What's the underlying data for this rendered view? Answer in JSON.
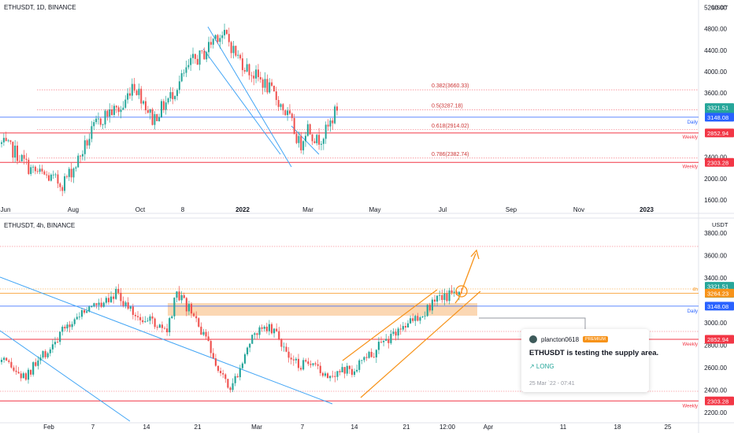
{
  "top_panel": {
    "title": "ETHUSDT, 1D, BINANCE",
    "unit": "USDT",
    "y_ticks": [
      {
        "v": 5200,
        "label": "5200.00"
      },
      {
        "v": 4800,
        "label": "4800.00"
      },
      {
        "v": 4400,
        "label": "4400.00"
      },
      {
        "v": 4000,
        "label": "4000.00"
      },
      {
        "v": 3600,
        "label": "3600.00"
      },
      {
        "v": 2400,
        "label": "2400.00"
      },
      {
        "v": 2000,
        "label": "2000.00"
      },
      {
        "v": 1600,
        "label": "1600.00"
      }
    ],
    "x_ticks": [
      {
        "label": "Jun",
        "bold": false
      },
      {
        "label": "Aug",
        "bold": false
      },
      {
        "label": "Oct",
        "bold": false
      },
      {
        "label": "8",
        "bold": false
      },
      {
        "label": "2022",
        "bold": true
      },
      {
        "label": "Mar",
        "bold": false
      },
      {
        "label": "May",
        "bold": false
      },
      {
        "label": "Jul",
        "bold": false
      },
      {
        "label": "Sep",
        "bold": false
      },
      {
        "label": "Nov",
        "bold": false
      },
      {
        "label": "2023",
        "bold": true
      }
    ],
    "fib_levels": [
      {
        "v": 3660.33,
        "label": "0.382(3660.33)"
      },
      {
        "v": 3287.18,
        "label": "0.5(3287.18)"
      },
      {
        "v": 2914.02,
        "label": "0.618(2914.02)"
      },
      {
        "v": 2382.74,
        "label": "0.786(2382.74)"
      }
    ],
    "badges": [
      {
        "v": 3321.51,
        "text": "3321.51",
        "text2": "16:57:20",
        "color": "#26a69a"
      },
      {
        "v": 3148.08,
        "text": "3148.08",
        "color": "#2962ff"
      },
      {
        "v": 2852.94,
        "text": "2852.94",
        "color": "#f23645"
      },
      {
        "v": 2303.28,
        "text": "2303.28",
        "color": "#f23645"
      }
    ],
    "level_labels": [
      {
        "v": 3148.08,
        "text": "Daily",
        "color": "#2962ff"
      },
      {
        "v": 2852.94,
        "text": "Weekly",
        "color": "#f23645"
      },
      {
        "v": 2303.28,
        "text": "Weekly",
        "color": "#f23645"
      }
    ]
  },
  "bottom_panel": {
    "title": "ETHUSDT, 4h, BINANCE",
    "unit": "USDT",
    "y_ticks": [
      {
        "v": 3800,
        "label": "3800.00"
      },
      {
        "v": 3600,
        "label": "3600.00"
      },
      {
        "v": 3400,
        "label": "3400.00"
      },
      {
        "v": 3000,
        "label": "3000.00"
      },
      {
        "v": 2800,
        "label": "2800.00"
      },
      {
        "v": 2600,
        "label": "2600.00"
      },
      {
        "v": 2400,
        "label": "2400.00"
      },
      {
        "v": 2200,
        "label": "2200.00"
      }
    ],
    "x_ticks": [
      {
        "label": "Feb",
        "bold": false
      },
      {
        "label": "7",
        "bold": false
      },
      {
        "label": "14",
        "bold": false
      },
      {
        "label": "21",
        "bold": false
      },
      {
        "label": "Mar",
        "bold": false
      },
      {
        "label": "7",
        "bold": false
      },
      {
        "label": "14",
        "bold": false
      },
      {
        "label": "21",
        "bold": false
      },
      {
        "label": "12:00",
        "bold": false
      },
      {
        "label": "Apr",
        "bold": false
      },
      {
        "label": "11",
        "bold": false
      },
      {
        "label": "18",
        "bold": false
      },
      {
        "label": "25",
        "bold": false
      }
    ],
    "badges": [
      {
        "v": 3321.51,
        "text": "3321.51",
        "text2": "57:20",
        "color": "#26a69a"
      },
      {
        "v": 3264.23,
        "text": "3264.23",
        "color": "#f7931a"
      },
      {
        "v": 3148.08,
        "text": "3148.08",
        "color": "#2962ff"
      },
      {
        "v": 2852.94,
        "text": "2852.94",
        "color": "#f23645"
      },
      {
        "v": 2303.28,
        "text": "2303.28",
        "color": "#f23645"
      }
    ],
    "level_labels": [
      {
        "v": 3264.23,
        "text": "4h",
        "color": "#f7931a"
      },
      {
        "v": 3148.08,
        "text": "Daily",
        "color": "#2962ff"
      },
      {
        "v": 2852.94,
        "text": "Weekly",
        "color": "#f23645"
      },
      {
        "v": 2303.28,
        "text": "Weekly",
        "color": "#f23645"
      }
    ]
  },
  "card": {
    "user": "plancton0618",
    "badge": "PREMIUM",
    "message": "ETHUSDT is testing the supply area.",
    "signal": "↗ LONG",
    "time": "25 Mar `22 - 07:41"
  },
  "colors": {
    "up": "#26a69a",
    "down": "#ef5350",
    "fib": "#f23645",
    "daily": "#2962ff",
    "weekly": "#f23645",
    "channel": "#f7931a",
    "zone": "#f9c99a"
  },
  "chart_data": [
    {
      "type": "line",
      "title": "ETHUSDT, 1D, BINANCE",
      "ylabel": "USDT",
      "ylim": [
        1300,
        5200
      ],
      "x": [
        "Jun",
        "Aug",
        "Oct",
        "8",
        "2022",
        "Mar"
      ],
      "series": [
        {
          "values": [
            2600,
            3000,
            3400,
            4800,
            3000,
            3321.51
          ]
        }
      ],
      "annotations": [
        "0.382(3660.33)",
        "0.5(3287.18)",
        "0.618(2914.02)",
        "0.786(2382.74)",
        "Daily 3148.08",
        "Weekly 2852.94",
        "Weekly 2303.28"
      ]
    },
    {
      "type": "line",
      "title": "ETHUSDT, 4h, BINANCE",
      "ylabel": "USDT",
      "ylim": [
        2100,
        3950
      ],
      "x": [
        "Feb",
        "7",
        "14",
        "21",
        "Mar",
        "7",
        "14",
        "21",
        "12:00"
      ],
      "series": [
        {
          "values": [
            2600,
            3250,
            3150,
            2750,
            2950,
            2600,
            2560,
            2950,
            3321.51
          ]
        }
      ],
      "annotations": [
        "4h 3264.23",
        "Daily 3148.08",
        "Weekly 2852.94",
        "Weekly 2303.28"
      ]
    }
  ]
}
